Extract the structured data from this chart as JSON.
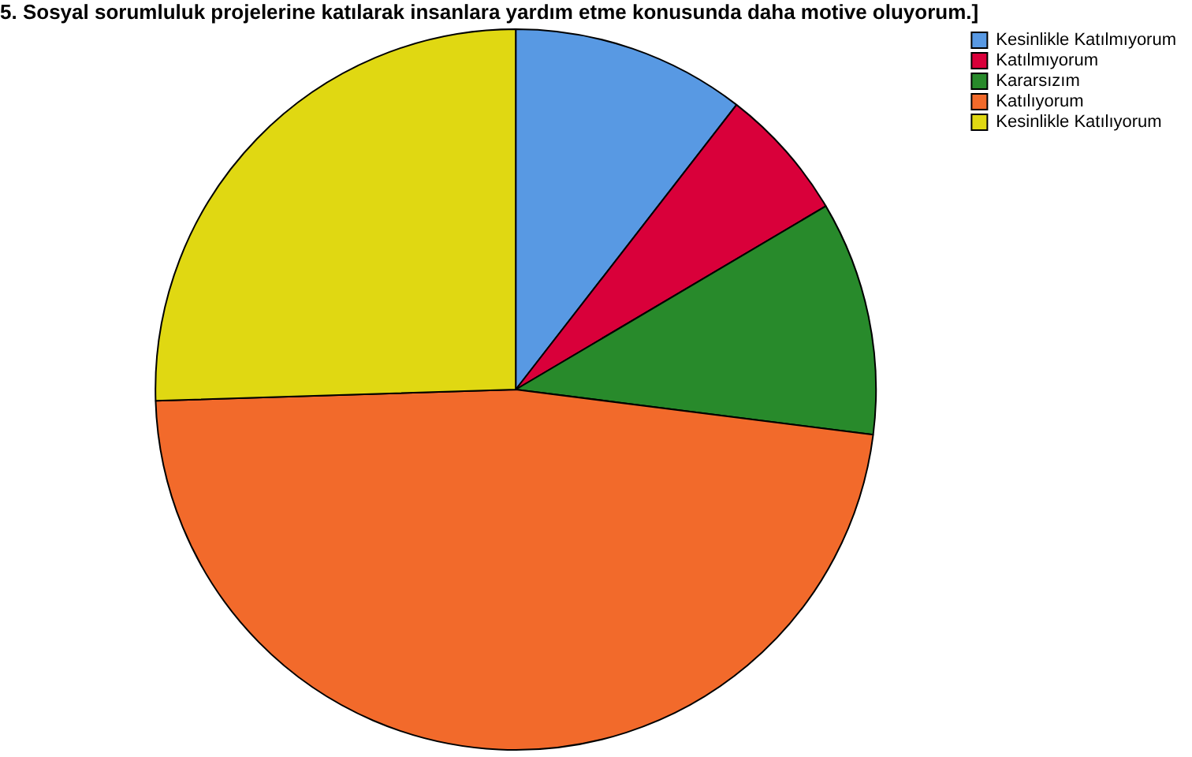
{
  "chart_data": {
    "type": "pie",
    "title": "5. Sosyal sorumluluk projelerine katılarak insanlara yardım etme konusunda daha motive oluyorum.]",
    "categories": [
      "Kesinlikle Katılmıyorum",
      "Katılmıyorum",
      "Kararsızım",
      "Katılıyorum",
      "Kesinlikle Katılıyorum"
    ],
    "values": [
      10.5,
      6,
      10.5,
      47.5,
      25.5
    ],
    "colors": [
      "#5899e3",
      "#d9003a",
      "#288a2b",
      "#f26a2b",
      "#e0d812"
    ],
    "legend": "top right"
  }
}
